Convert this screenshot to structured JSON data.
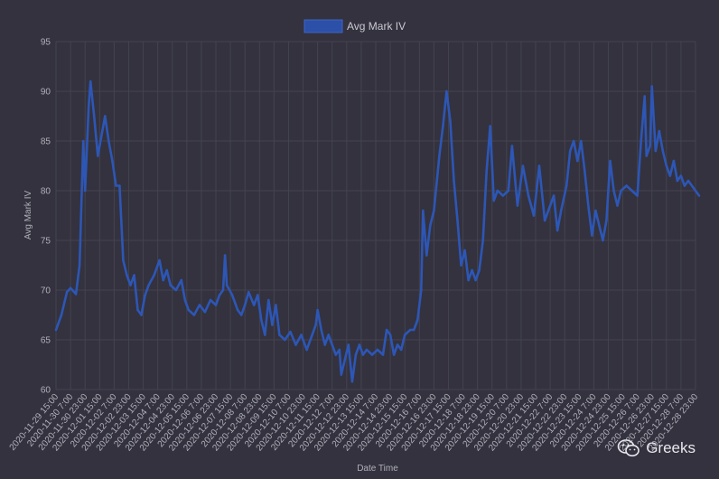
{
  "chart_data": {
    "type": "line",
    "title": "",
    "xlabel": "Date Time",
    "ylabel": "Avg Mark IV",
    "ylim": [
      60,
      95
    ],
    "yticks": [
      60,
      65,
      70,
      75,
      80,
      85,
      90,
      95
    ],
    "grid": true,
    "legend_position": "top-center",
    "x_tick_labels": [
      "2020-11-29 15:00",
      "2020-11-30 7:00",
      "2020-11-30 23:00",
      "2020-12-01 15:00",
      "2020-12-02 7:00",
      "2020-12-02 23:00",
      "2020-12-03 15:00",
      "2020-12-04 7:00",
      "2020-12-04 23:00",
      "2020-12-05 15:00",
      "2020-12-06 7:00",
      "2020-12-06 23:00",
      "2020-12-07 15:00",
      "2020-12-08 7:00",
      "2020-12-08 23:00",
      "2020-12-09 15:00",
      "2020-12-10 7:00",
      "2020-12-10 23:00",
      "2020-12-11 15:00",
      "2020-12-12 7:00",
      "2020-12-12 23:00",
      "2020-12-13 15:00",
      "2020-12-14 7:00",
      "2020-12-14 23:00",
      "2020-12-15 15:00",
      "2020-12-16 7:00",
      "2020-12-16 23:00",
      "2020-12-17 15:00",
      "2020-12-18 7:00",
      "2020-12-18 23:00",
      "2020-12-19 15:00",
      "2020-12-20 7:00",
      "2020-12-20 23:00",
      "2020-12-21 15:00",
      "2020-12-22 7:00",
      "2020-12-22 23:00",
      "2020-12-23 15:00",
      "2020-12-24 7:00",
      "2020-12-24 23:00",
      "2020-12-25 15:00",
      "2020-12-26 7:00",
      "2020-12-26 23:00",
      "2020-12-27 15:00",
      "2020-12-28 7:00",
      "2020-12-28 23:00"
    ],
    "series": [
      {
        "name": "Avg Mark IV",
        "color": "#2d56b5",
        "points": [
          [
            "2020-11-29 15:00",
            66.0
          ],
          [
            "2020-11-29 21:00",
            67.5
          ],
          [
            "2020-11-30 03:00",
            69.8
          ],
          [
            "2020-11-30 07:00",
            70.2
          ],
          [
            "2020-11-30 13:00",
            69.6
          ],
          [
            "2020-11-30 17:00",
            72.5
          ],
          [
            "2020-11-30 21:00",
            85.0
          ],
          [
            "2020-11-30 23:00",
            80.0
          ],
          [
            "2020-12-01 03:00",
            88.5
          ],
          [
            "2020-12-01 05:00",
            91.0
          ],
          [
            "2020-12-01 09:00",
            87.5
          ],
          [
            "2020-12-01 13:00",
            83.5
          ],
          [
            "2020-12-01 17:00",
            85.5
          ],
          [
            "2020-12-01 21:00",
            87.5
          ],
          [
            "2020-12-02 01:00",
            85.0
          ],
          [
            "2020-12-02 05:00",
            83.0
          ],
          [
            "2020-12-02 09:00",
            80.5
          ],
          [
            "2020-12-02 13:00",
            80.5
          ],
          [
            "2020-12-02 17:00",
            73.0
          ],
          [
            "2020-12-02 21:00",
            71.5
          ],
          [
            "2020-12-03 01:00",
            70.5
          ],
          [
            "2020-12-03 05:00",
            71.5
          ],
          [
            "2020-12-03 09:00",
            68.0
          ],
          [
            "2020-12-03 13:00",
            67.5
          ],
          [
            "2020-12-03 17:00",
            69.5
          ],
          [
            "2020-12-03 21:00",
            70.5
          ],
          [
            "2020-12-04 03:00",
            71.5
          ],
          [
            "2020-12-04 09:00",
            73.0
          ],
          [
            "2020-12-04 13:00",
            71.0
          ],
          [
            "2020-12-04 17:00",
            72.0
          ],
          [
            "2020-12-04 21:00",
            70.5
          ],
          [
            "2020-12-05 03:00",
            70.0
          ],
          [
            "2020-12-05 09:00",
            71.0
          ],
          [
            "2020-12-05 13:00",
            69.0
          ],
          [
            "2020-12-05 17:00",
            68.0
          ],
          [
            "2020-12-05 23:00",
            67.5
          ],
          [
            "2020-12-06 05:00",
            68.5
          ],
          [
            "2020-12-06 11:00",
            67.8
          ],
          [
            "2020-12-06 17:00",
            69.0
          ],
          [
            "2020-12-06 23:00",
            68.5
          ],
          [
            "2020-12-07 03:00",
            69.5
          ],
          [
            "2020-12-07 07:00",
            70.0
          ],
          [
            "2020-12-07 09:00",
            73.5
          ],
          [
            "2020-12-07 11:00",
            70.5
          ],
          [
            "2020-12-07 17:00",
            69.5
          ],
          [
            "2020-12-07 23:00",
            68.0
          ],
          [
            "2020-12-08 03:00",
            67.5
          ],
          [
            "2020-12-08 07:00",
            68.5
          ],
          [
            "2020-12-08 11:00",
            69.8
          ],
          [
            "2020-12-08 17:00",
            68.5
          ],
          [
            "2020-12-08 21:00",
            69.5
          ],
          [
            "2020-12-09 01:00",
            67.0
          ],
          [
            "2020-12-09 05:00",
            65.5
          ],
          [
            "2020-12-09 09:00",
            69.0
          ],
          [
            "2020-12-09 13:00",
            66.5
          ],
          [
            "2020-12-09 17:00",
            68.5
          ],
          [
            "2020-12-09 21:00",
            65.5
          ],
          [
            "2020-12-10 03:00",
            65.0
          ],
          [
            "2020-12-10 09:00",
            65.8
          ],
          [
            "2020-12-10 15:00",
            64.5
          ],
          [
            "2020-12-10 21:00",
            65.5
          ],
          [
            "2020-12-11 03:00",
            64.0
          ],
          [
            "2020-12-11 09:00",
            65.5
          ],
          [
            "2020-12-11 13:00",
            66.5
          ],
          [
            "2020-12-11 15:00",
            68.0
          ],
          [
            "2020-12-11 19:00",
            66.0
          ],
          [
            "2020-12-11 23:00",
            64.5
          ],
          [
            "2020-12-12 03:00",
            65.5
          ],
          [
            "2020-12-12 07:00",
            64.5
          ],
          [
            "2020-12-12 11:00",
            63.5
          ],
          [
            "2020-12-12 15:00",
            64.0
          ],
          [
            "2020-12-12 17:00",
            61.5
          ],
          [
            "2020-12-12 21:00",
            63.0
          ],
          [
            "2020-12-13 01:00",
            64.5
          ],
          [
            "2020-12-13 05:00",
            60.8
          ],
          [
            "2020-12-13 09:00",
            63.5
          ],
          [
            "2020-12-13 13:00",
            64.5
          ],
          [
            "2020-12-13 17:00",
            63.5
          ],
          [
            "2020-12-13 21:00",
            64.0
          ],
          [
            "2020-12-14 03:00",
            63.5
          ],
          [
            "2020-12-14 09:00",
            64.0
          ],
          [
            "2020-12-14 15:00",
            63.5
          ],
          [
            "2020-12-14 19:00",
            66.0
          ],
          [
            "2020-12-14 23:00",
            65.5
          ],
          [
            "2020-12-15 03:00",
            63.5
          ],
          [
            "2020-12-15 07:00",
            64.5
          ],
          [
            "2020-12-15 11:00",
            64.0
          ],
          [
            "2020-12-15 15:00",
            65.5
          ],
          [
            "2020-12-15 21:00",
            66.0
          ],
          [
            "2020-12-16 01:00",
            66.0
          ],
          [
            "2020-12-16 05:00",
            67.0
          ],
          [
            "2020-12-16 09:00",
            70.0
          ],
          [
            "2020-12-16 11:00",
            78.0
          ],
          [
            "2020-12-16 15:00",
            73.5
          ],
          [
            "2020-12-16 19:00",
            76.5
          ],
          [
            "2020-12-16 23:00",
            78.0
          ],
          [
            "2020-12-17 05:00",
            83.5
          ],
          [
            "2020-12-17 09:00",
            86.5
          ],
          [
            "2020-12-17 13:00",
            90.0
          ],
          [
            "2020-12-17 17:00",
            87.0
          ],
          [
            "2020-12-17 21:00",
            81.0
          ],
          [
            "2020-12-18 01:00",
            77.0
          ],
          [
            "2020-12-18 05:00",
            72.5
          ],
          [
            "2020-12-18 09:00",
            74.0
          ],
          [
            "2020-12-18 13:00",
            71.0
          ],
          [
            "2020-12-18 17:00",
            72.0
          ],
          [
            "2020-12-18 21:00",
            71.0
          ],
          [
            "2020-12-19 01:00",
            72.0
          ],
          [
            "2020-12-19 05:00",
            75.0
          ],
          [
            "2020-12-19 09:00",
            82.0
          ],
          [
            "2020-12-19 13:00",
            86.5
          ],
          [
            "2020-12-19 17:00",
            79.0
          ],
          [
            "2020-12-19 21:00",
            80.0
          ],
          [
            "2020-12-20 03:00",
            79.5
          ],
          [
            "2020-12-20 09:00",
            80.0
          ],
          [
            "2020-12-20 13:00",
            84.5
          ],
          [
            "2020-12-20 19:00",
            78.5
          ],
          [
            "2020-12-21 01:00",
            82.5
          ],
          [
            "2020-12-21 07:00",
            79.5
          ],
          [
            "2020-12-21 13:00",
            77.5
          ],
          [
            "2020-12-21 19:00",
            82.5
          ],
          [
            "2020-12-22 01:00",
            77.0
          ],
          [
            "2020-12-22 07:00",
            78.5
          ],
          [
            "2020-12-22 11:00",
            79.5
          ],
          [
            "2020-12-22 15:00",
            76.0
          ],
          [
            "2020-12-22 19:00",
            78.0
          ],
          [
            "2020-12-23 01:00",
            80.5
          ],
          [
            "2020-12-23 05:00",
            84.0
          ],
          [
            "2020-12-23 09:00",
            85.0
          ],
          [
            "2020-12-23 13:00",
            83.0
          ],
          [
            "2020-12-23 17:00",
            85.0
          ],
          [
            "2020-12-23 21:00",
            82.0
          ],
          [
            "2020-12-24 01:00",
            78.5
          ],
          [
            "2020-12-24 05:00",
            75.5
          ],
          [
            "2020-12-24 09:00",
            78.0
          ],
          [
            "2020-12-24 13:00",
            76.5
          ],
          [
            "2020-12-24 17:00",
            75.0
          ],
          [
            "2020-12-24 21:00",
            77.0
          ],
          [
            "2020-12-25 01:00",
            83.0
          ],
          [
            "2020-12-25 05:00",
            80.0
          ],
          [
            "2020-12-25 09:00",
            78.5
          ],
          [
            "2020-12-25 13:00",
            80.0
          ],
          [
            "2020-12-25 19:00",
            80.5
          ],
          [
            "2020-12-26 01:00",
            80.0
          ],
          [
            "2020-12-26 07:00",
            79.5
          ],
          [
            "2020-12-26 11:00",
            85.0
          ],
          [
            "2020-12-26 15:00",
            89.5
          ],
          [
            "2020-12-26 17:00",
            83.5
          ],
          [
            "2020-12-26 21:00",
            84.5
          ],
          [
            "2020-12-26 23:00",
            90.5
          ],
          [
            "2020-12-27 03:00",
            84.0
          ],
          [
            "2020-12-27 07:00",
            86.0
          ],
          [
            "2020-12-27 11:00",
            84.0
          ],
          [
            "2020-12-27 15:00",
            82.5
          ],
          [
            "2020-12-27 19:00",
            81.5
          ],
          [
            "2020-12-27 23:00",
            83.0
          ],
          [
            "2020-12-28 03:00",
            81.0
          ],
          [
            "2020-12-28 07:00",
            81.5
          ],
          [
            "2020-12-28 11:00",
            80.5
          ],
          [
            "2020-12-28 15:00",
            81.0
          ],
          [
            "2020-12-29 03:00",
            79.5
          ]
        ]
      }
    ]
  },
  "watermark": {
    "text": "Greeks",
    "icon": "wechat-icon"
  }
}
